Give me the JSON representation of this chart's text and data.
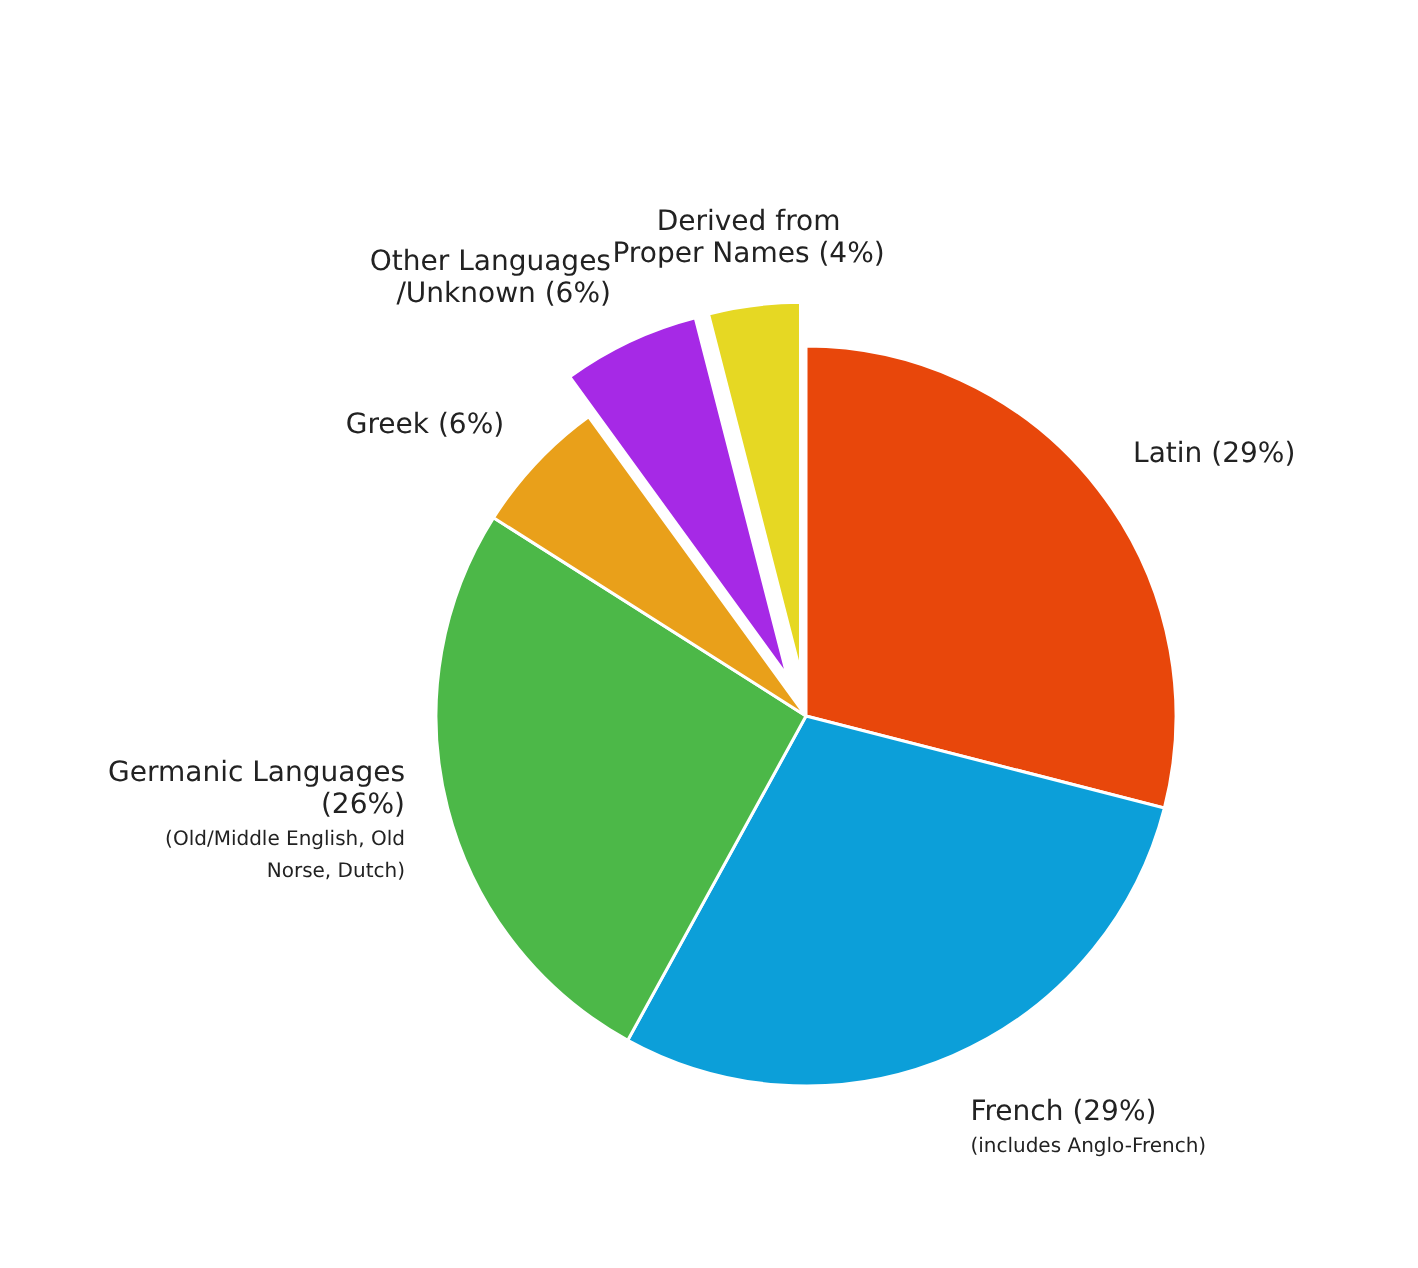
{
  "chart_data": {
    "type": "pie",
    "categories": [
      "Latin (29%)",
      "French (29%)",
      "Germanic Languages (26%)",
      "Greek (6%)",
      "Other Languages /Unknown (6%)",
      "Derived from Proper Names (4%)"
    ],
    "values": [
      29,
      29,
      26,
      6,
      6,
      4
    ],
    "colors": [
      "#e8470b",
      "#0c9fd9",
      "#4cb848",
      "#e9a01a",
      "#a629e6",
      "#e6d823"
    ],
    "annotations": [
      {
        "text": "(includes Anglo-French)",
        "x": "French (29%)"
      },
      {
        "text": "(Old/Middle English, Old Norse, Dutch)",
        "x": "Germanic Languages (26%)"
      }
    ]
  }
}
